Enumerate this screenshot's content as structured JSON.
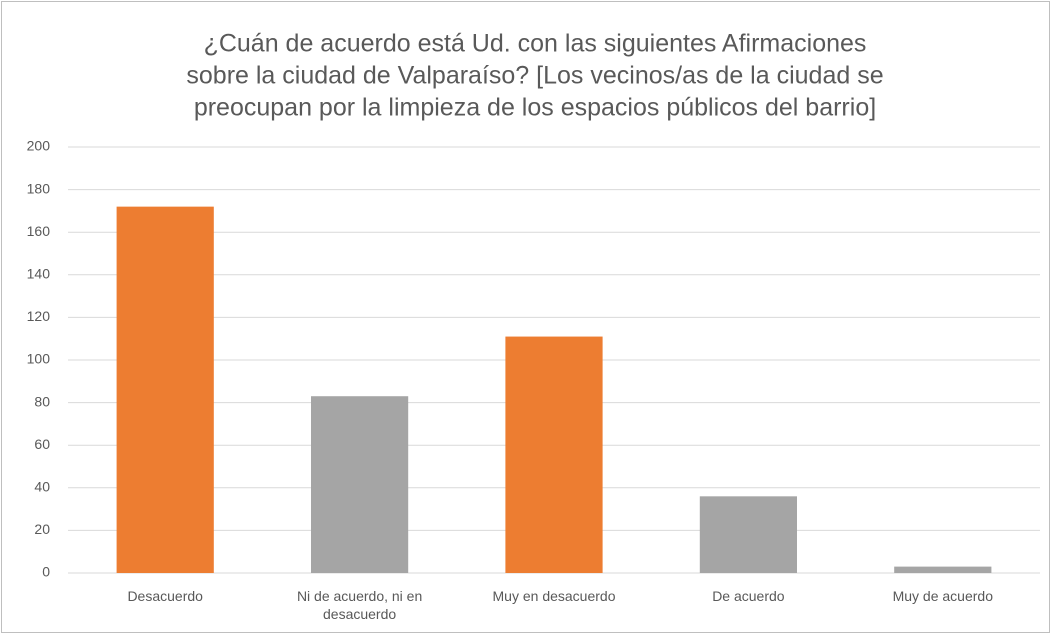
{
  "chart_data": {
    "type": "bar",
    "title": [
      "¿Cuán de acuerdo está Ud. con las siguientes Afirmaciones",
      "sobre la ciudad de Valparaíso? [Los vecinos/as de la ciudad se",
      "preocupan por la limpieza de los espacios públicos del barrio]"
    ],
    "categories": [
      "Desacuerdo",
      "Ni de acuerdo, ni en desacuerdo",
      "Muy en desacuerdo",
      "De acuerdo",
      "Muy de acuerdo"
    ],
    "values": [
      172,
      83,
      111,
      36,
      3
    ],
    "colors": [
      "#ed7d31",
      "#a5a5a5",
      "#ed7d31",
      "#a5a5a5",
      "#a5a5a5"
    ],
    "ylim": [
      0,
      200
    ],
    "yticks": [
      0,
      20,
      40,
      60,
      80,
      100,
      120,
      140,
      160,
      180,
      200
    ],
    "grid": true
  }
}
